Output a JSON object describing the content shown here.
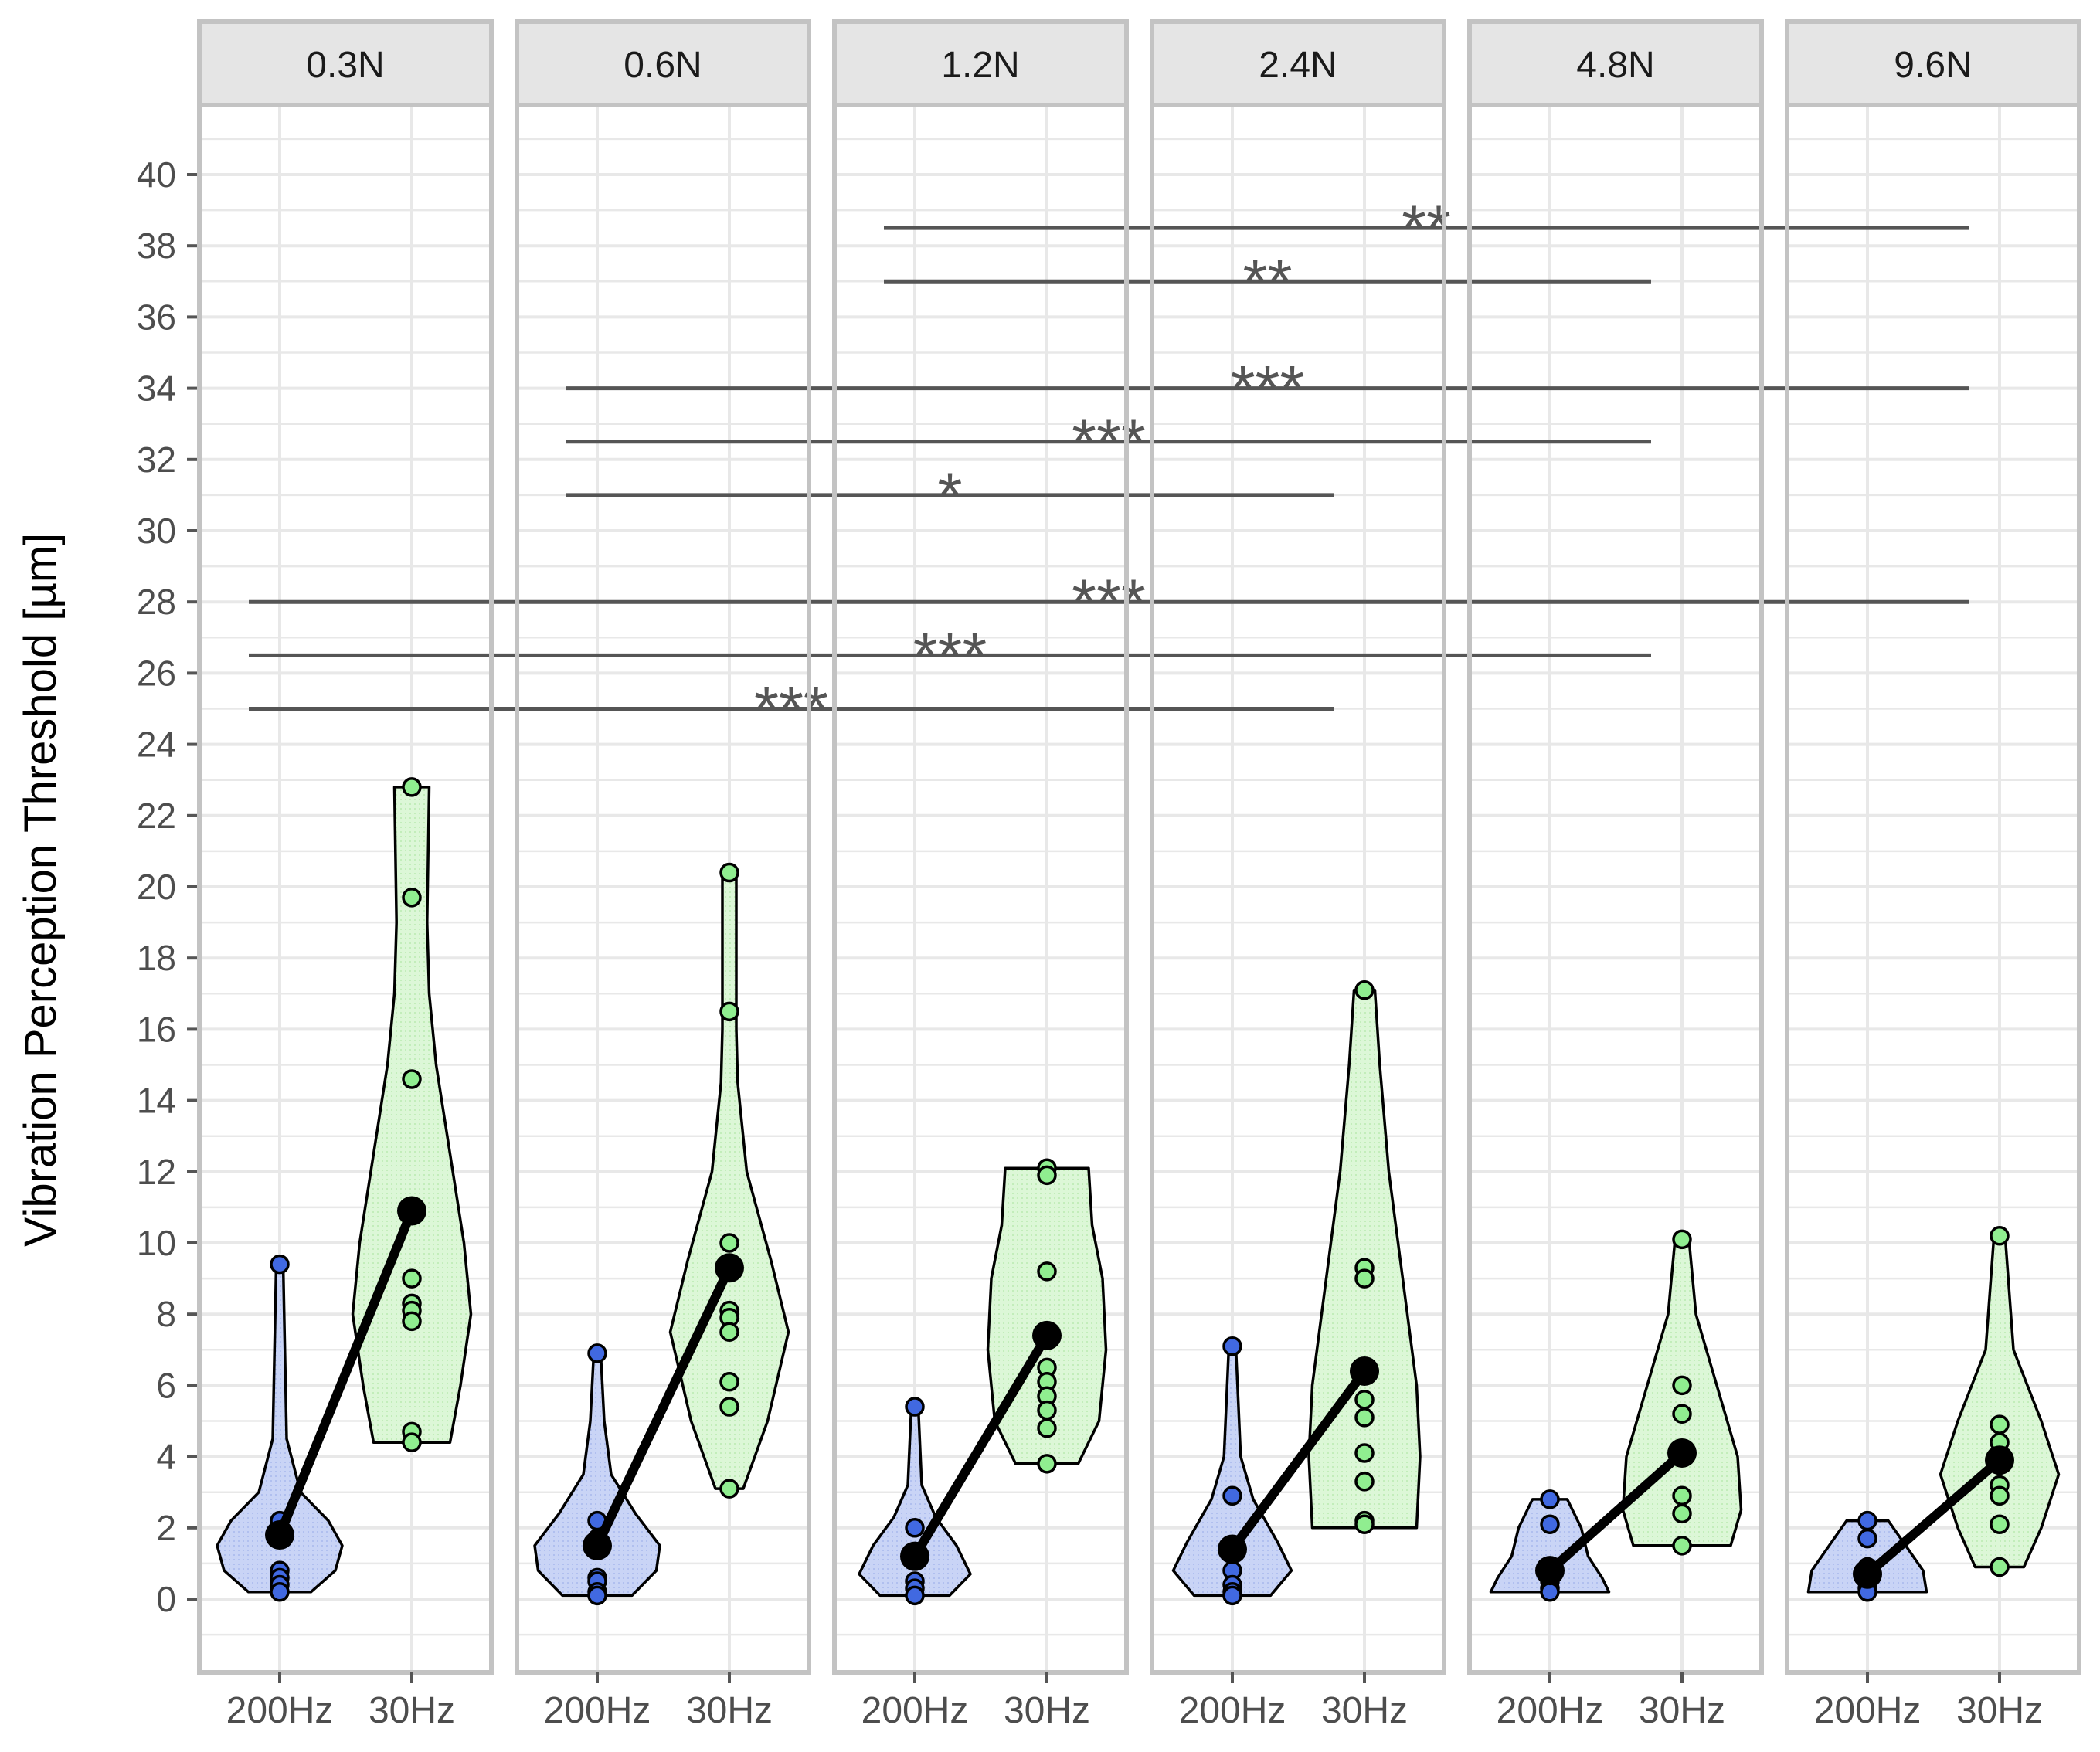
{
  "chart_data": {
    "type": "violin",
    "ylabel": "Vibration Perception Threshold [µm]",
    "xlabel": "",
    "ylim": [
      -2,
      41.5
    ],
    "yticks": [
      0,
      2,
      4,
      6,
      8,
      10,
      12,
      14,
      16,
      18,
      20,
      22,
      24,
      26,
      28,
      30,
      32,
      34,
      36,
      38,
      40
    ],
    "grid": true,
    "categories": [
      "200Hz",
      "30Hz"
    ],
    "colors": {
      "200Hz": {
        "fill": "#c9d4f6",
        "point": "#4169e1"
      },
      "30Hz": {
        "fill": "#d8f5d3",
        "point": "#90ee90"
      },
      "mean": "#000000",
      "panel_border": "#c3c3c3",
      "strip": "#e5e5e5",
      "grid": "#e8e8e8",
      "bracket": "#555555"
    },
    "panels": [
      {
        "label": "0.3N",
        "groups": [
          {
            "name": "200Hz",
            "mean": 1.8,
            "points": [
              9.4,
              2.2,
              1.9,
              0.8,
              0.6,
              0.4,
              0.2
            ],
            "violin": [
              [
                0.2,
                0.45
              ],
              [
                0.8,
                0.8
              ],
              [
                1.5,
                0.9
              ],
              [
                2.2,
                0.7
              ],
              [
                3.0,
                0.3
              ],
              [
                4.5,
                0.1
              ],
              [
                9.4,
                0.05
              ]
            ]
          },
          {
            "name": "30Hz",
            "mean": 10.9,
            "points": [
              22.8,
              19.7,
              14.6,
              9.0,
              8.3,
              8.1,
              7.8,
              4.7,
              4.4
            ],
            "violin": [
              [
                4.4,
                0.55
              ],
              [
                6.0,
                0.7
              ],
              [
                8.0,
                0.85
              ],
              [
                10.0,
                0.75
              ],
              [
                12.5,
                0.55
              ],
              [
                15.0,
                0.35
              ],
              [
                17.0,
                0.25
              ],
              [
                19.0,
                0.22
              ],
              [
                22.8,
                0.25
              ]
            ]
          }
        ]
      },
      {
        "label": "0.6N",
        "groups": [
          {
            "name": "200Hz",
            "mean": 1.5,
            "points": [
              6.9,
              2.2,
              1.7,
              0.6,
              0.5,
              0.2,
              0.1
            ],
            "violin": [
              [
                0.1,
                0.5
              ],
              [
                0.8,
                0.85
              ],
              [
                1.5,
                0.9
              ],
              [
                2.4,
                0.55
              ],
              [
                3.5,
                0.2
              ],
              [
                5.0,
                0.1
              ],
              [
                6.9,
                0.05
              ]
            ]
          },
          {
            "name": "30Hz",
            "mean": 9.3,
            "points": [
              20.4,
              16.5,
              10.0,
              9.3,
              8.1,
              7.9,
              7.5,
              6.1,
              5.4,
              3.1
            ],
            "violin": [
              [
                3.1,
                0.2
              ],
              [
                5.0,
                0.55
              ],
              [
                7.5,
                0.85
              ],
              [
                9.5,
                0.6
              ],
              [
                12.0,
                0.25
              ],
              [
                14.5,
                0.12
              ],
              [
                16.0,
                0.1
              ],
              [
                20.4,
                0.1
              ]
            ]
          }
        ]
      },
      {
        "label": "1.2N",
        "groups": [
          {
            "name": "200Hz",
            "mean": 1.2,
            "points": [
              5.4,
              2.0,
              0.5,
              0.3,
              0.1
            ],
            "violin": [
              [
                0.1,
                0.5
              ],
              [
                0.7,
                0.8
              ],
              [
                1.5,
                0.6
              ],
              [
                2.3,
                0.3
              ],
              [
                3.2,
                0.1
              ],
              [
                5.4,
                0.05
              ]
            ]
          },
          {
            "name": "30Hz",
            "mean": 7.4,
            "points": [
              12.1,
              11.9,
              9.2,
              6.5,
              6.1,
              5.7,
              5.3,
              4.8,
              3.8
            ],
            "violin": [
              [
                3.8,
                0.45
              ],
              [
                5.0,
                0.75
              ],
              [
                7.0,
                0.85
              ],
              [
                9.0,
                0.8
              ],
              [
                10.5,
                0.65
              ],
              [
                12.1,
                0.6
              ]
            ]
          }
        ]
      },
      {
        "label": "2.4N",
        "groups": [
          {
            "name": "200Hz",
            "mean": 1.4,
            "points": [
              7.1,
              2.9,
              1.4,
              0.8,
              0.4,
              0.2,
              0.1
            ],
            "violin": [
              [
                0.1,
                0.55
              ],
              [
                0.8,
                0.85
              ],
              [
                1.6,
                0.65
              ],
              [
                2.8,
                0.3
              ],
              [
                4.0,
                0.12
              ],
              [
                7.1,
                0.05
              ]
            ]
          },
          {
            "name": "30Hz",
            "mean": 6.4,
            "points": [
              17.1,
              9.3,
              9.0,
              6.3,
              5.6,
              5.1,
              4.1,
              3.3,
              2.2,
              2.1
            ],
            "violin": [
              [
                2.0,
                0.75
              ],
              [
                4.0,
                0.8
              ],
              [
                6.0,
                0.75
              ],
              [
                9.0,
                0.55
              ],
              [
                12.0,
                0.35
              ],
              [
                15.0,
                0.22
              ],
              [
                17.1,
                0.15
              ]
            ]
          }
        ]
      },
      {
        "label": "4.8N",
        "groups": [
          {
            "name": "200Hz",
            "mean": 0.8,
            "points": [
              2.8,
              2.1,
              0.6,
              0.5,
              0.3,
              0.2
            ],
            "violin": [
              [
                0.2,
                0.85
              ],
              [
                0.6,
                0.75
              ],
              [
                1.2,
                0.55
              ],
              [
                2.0,
                0.45
              ],
              [
                2.8,
                0.25
              ]
            ]
          },
          {
            "name": "30Hz",
            "mean": 4.1,
            "points": [
              10.1,
              6.0,
              5.2,
              2.9,
              2.4,
              1.5
            ],
            "violin": [
              [
                1.5,
                0.7
              ],
              [
                2.5,
                0.85
              ],
              [
                4.0,
                0.8
              ],
              [
                6.0,
                0.5
              ],
              [
                8.0,
                0.2
              ],
              [
                10.1,
                0.1
              ]
            ]
          }
        ]
      },
      {
        "label": "9.6N",
        "groups": [
          {
            "name": "200Hz",
            "mean": 0.7,
            "points": [
              2.2,
              1.7,
              0.9,
              0.5,
              0.3,
              0.2
            ],
            "violin": [
              [
                0.2,
                0.85
              ],
              [
                0.8,
                0.8
              ],
              [
                1.5,
                0.55
              ],
              [
                2.2,
                0.3
              ]
            ]
          },
          {
            "name": "30Hz",
            "mean": 3.9,
            "points": [
              10.2,
              4.9,
              4.4,
              3.2,
              2.9,
              2.1,
              0.9
            ],
            "violin": [
              [
                0.9,
                0.35
              ],
              [
                2.0,
                0.6
              ],
              [
                3.5,
                0.85
              ],
              [
                5.0,
                0.6
              ],
              [
                7.0,
                0.2
              ],
              [
                10.2,
                0.08
              ]
            ]
          }
        ]
      }
    ],
    "comparisons": [
      {
        "from_panel": "1.2N",
        "to_panel": "9.6N",
        "y": 38.5,
        "label": "**"
      },
      {
        "from_panel": "1.2N",
        "to_panel": "4.8N",
        "y": 37.0,
        "label": "**"
      },
      {
        "from_panel": "0.6N",
        "to_panel": "9.6N",
        "y": 34.0,
        "label": "***"
      },
      {
        "from_panel": "0.6N",
        "to_panel": "4.8N",
        "y": 32.5,
        "label": "***"
      },
      {
        "from_panel": "0.6N",
        "to_panel": "2.4N",
        "y": 31.0,
        "label": "*"
      },
      {
        "from_panel": "0.3N",
        "to_panel": "9.6N",
        "y": 28.0,
        "label": "***"
      },
      {
        "from_panel": "0.3N",
        "to_panel": "4.8N",
        "y": 26.5,
        "label": "***"
      },
      {
        "from_panel": "0.3N",
        "to_panel": "2.4N",
        "y": 25.0,
        "label": "***"
      }
    ]
  }
}
